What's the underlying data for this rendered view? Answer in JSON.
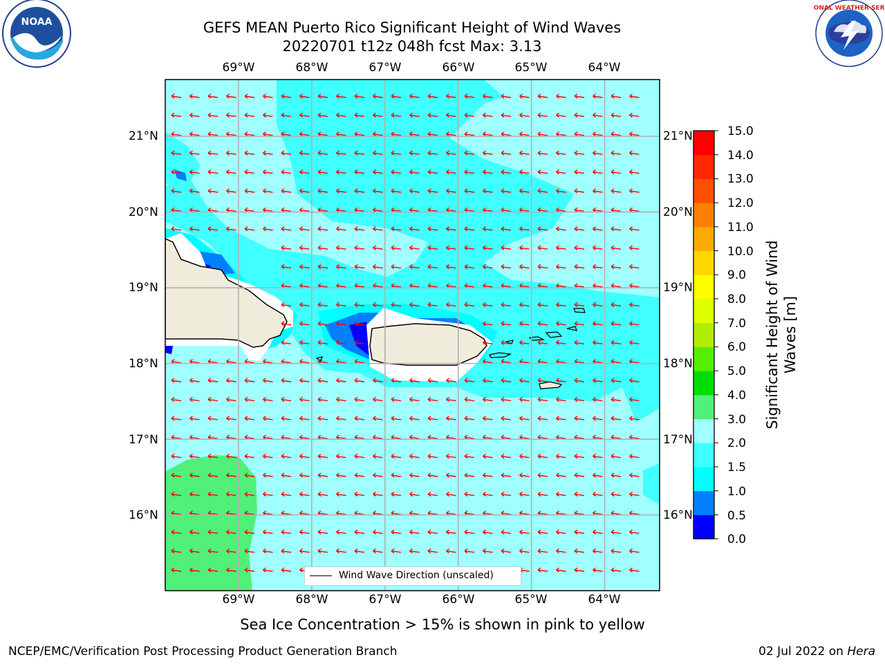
{
  "header": {
    "title_line1": "GEFS MEAN Puerto Rico Significant Height of Wind Waves",
    "title_line2": "20220701 t12z 048h fcst   Max: 3.13"
  },
  "map": {
    "lon_labels": [
      "69°W",
      "68°W",
      "67°W",
      "66°W",
      "65°W",
      "64°W"
    ],
    "lat_labels": [
      "21°N",
      "20°N",
      "19°N",
      "18°N",
      "17°N",
      "16°N"
    ],
    "lon_values": [
      -69,
      -68,
      -67,
      -66,
      -65,
      -64
    ],
    "lat_values": [
      21,
      20,
      19,
      18,
      17,
      16
    ],
    "extent": {
      "lon_min": -70,
      "lon_max": -63.25,
      "lat_min": 15,
      "lat_max": 21.75
    },
    "arrow_color": "#ff0000",
    "land_color": "#efecdc",
    "dominant_wave_direction": "westward (from the east)",
    "legend_label": "Wind Wave Direction (unscaled)"
  },
  "colorbar": {
    "ticks": [
      "15.0",
      "14.0",
      "13.0",
      "12.0",
      "11.0",
      "10.0",
      "9.0",
      "8.0",
      "7.0",
      "6.0",
      "5.0",
      "4.0",
      "3.0",
      "2.0",
      "1.5",
      "1.0",
      "0.5",
      "0.0"
    ],
    "label": "Significant Height of Wind Waves [m]",
    "colors": [
      "#0000ff",
      "#0080ff",
      "#00ffff",
      "#40ffff",
      "#a0ffff",
      "#50f07a",
      "#33dd33",
      "#00dd00",
      "#66ee00",
      "#b0ee00",
      "#ccff00",
      "#eeff00",
      "#ffff00",
      "#ffcc00",
      "#ffaa00",
      "#ff8000",
      "#ff5000",
      "#ff2800",
      "#ff0000"
    ]
  },
  "footer": {
    "note": "Sea Ice Concentration > 15% is shown in pink to yellow",
    "left": "NCEP/EMC/Verification Post Processing Product Generation Branch",
    "right_date": "02 Jul 2022 on ",
    "right_machine": "Hera"
  },
  "logos": {
    "noaa_text": "NOAA",
    "noaa_ring": "NATIONAL OCEANIC AND ATMOSPHERIC ADMINISTRATION • U.S. DEPARTMENT OF COMMERCE",
    "nws_ring": "NATIONAL WEATHER SERVICE"
  }
}
